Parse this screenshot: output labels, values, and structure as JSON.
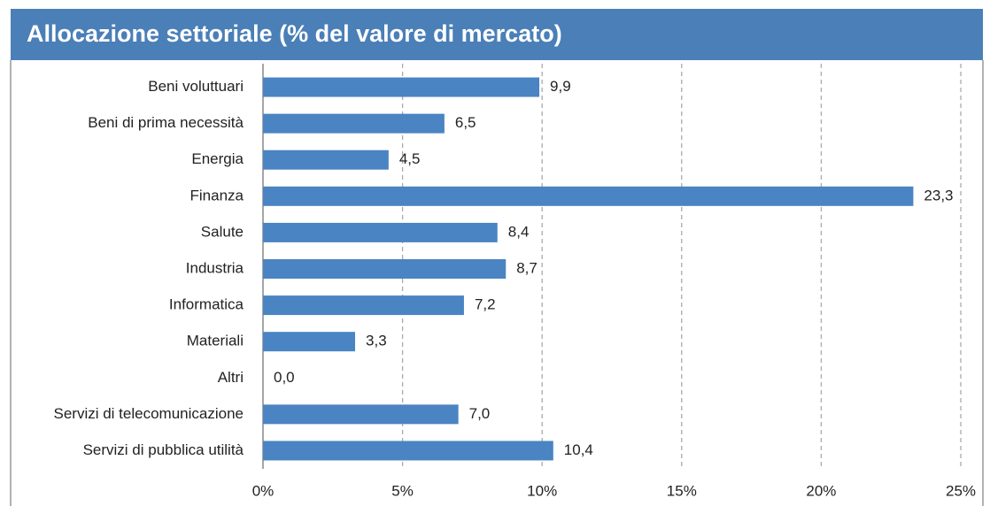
{
  "chart_data": {
    "type": "bar",
    "orientation": "horizontal",
    "title": "Allocazione settoriale (% del valore di mercato)",
    "categories": [
      "Beni voluttuari",
      "Beni di prima necessità",
      "Energia",
      "Finanza",
      "Salute",
      "Industria",
      "Informatica",
      "Materiali",
      "Altri",
      "Servizi di telecomunicazione",
      "Servizi di pubblica utilità"
    ],
    "values": [
      9.9,
      6.5,
      4.5,
      23.3,
      8.4,
      8.7,
      7.2,
      3.3,
      0.0,
      7.0,
      10.4
    ],
    "value_labels": [
      "9,9",
      "6,5",
      "4,5",
      "23,3",
      "8,4",
      "8,7",
      "7,2",
      "3,3",
      "0,0",
      "7,0",
      "10,4"
    ],
    "color": "#4a84c2",
    "xlim": [
      0,
      25
    ],
    "xticks": [
      {
        "value": 0,
        "label": "0%"
      },
      {
        "value": 5,
        "label": "5%"
      },
      {
        "value": 10,
        "label": "10%"
      },
      {
        "value": 15,
        "label": "15%"
      },
      {
        "value": 20,
        "label": "20%"
      },
      {
        "value": 25,
        "label": "25%"
      }
    ],
    "grid": true
  }
}
